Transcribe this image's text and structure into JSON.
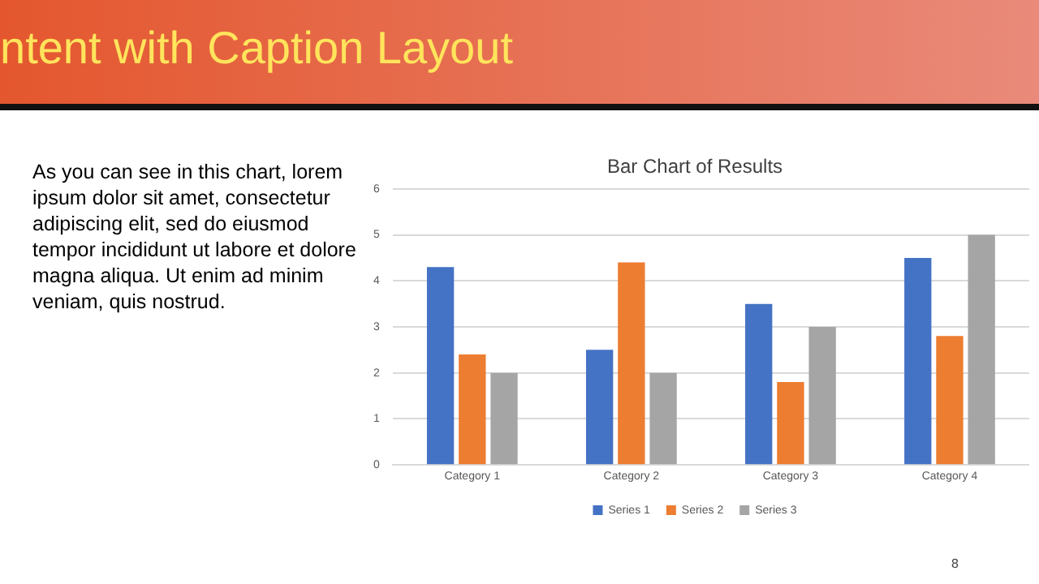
{
  "chart_data": {
    "type": "bar",
    "title": "Bar Chart of Results",
    "categories": [
      "Category 1",
      "Category 2",
      "Category 3",
      "Category 4"
    ],
    "series": [
      {
        "name": "Series 1",
        "color": "#4472c4",
        "values": [
          4.3,
          2.5,
          3.5,
          4.5
        ]
      },
      {
        "name": "Series 2",
        "color": "#ed7d31",
        "values": [
          2.4,
          4.4,
          1.8,
          2.8
        ]
      },
      {
        "name": "Series 3",
        "color": "#a5a5a5",
        "values": [
          2,
          2,
          3,
          5
        ]
      }
    ],
    "ylim": [
      0,
      6
    ],
    "yticks": [
      0,
      1,
      2,
      3,
      4,
      5,
      6
    ],
    "grid": "y",
    "legend": "bottom",
    "annotations": [
      "ntent with Caption Layout",
      "As you can see in this chart, lorem ipsum dolor sit amet, consectetur adipiscing elit, sed do eiusmod tempor incididunt ut labore et dolore magna aliqua. Ut enim ad minim veniam, quis nostrud.",
      "8"
    ]
  }
}
